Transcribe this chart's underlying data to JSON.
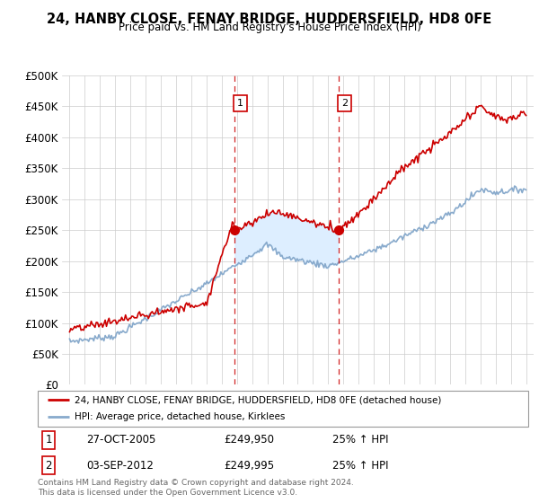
{
  "title": "24, HANBY CLOSE, FENAY BRIDGE, HUDDERSFIELD, HD8 0FE",
  "subtitle": "Price paid vs. HM Land Registry's House Price Index (HPI)",
  "ylabel_ticks": [
    "£0",
    "£50K",
    "£100K",
    "£150K",
    "£200K",
    "£250K",
    "£300K",
    "£350K",
    "£400K",
    "£450K",
    "£500K"
  ],
  "ytick_values": [
    0,
    50000,
    100000,
    150000,
    200000,
    250000,
    300000,
    350000,
    400000,
    450000,
    500000
  ],
  "xlim": [
    1994.5,
    2025.5
  ],
  "ylim": [
    0,
    500000
  ],
  "sale1_year": 2005.82,
  "sale1_price": 249950,
  "sale2_year": 2012.67,
  "sale2_price": 249995,
  "legend_line1": "24, HANBY CLOSE, FENAY BRIDGE, HUDDERSFIELD, HD8 0FE (detached house)",
  "legend_line2": "HPI: Average price, detached house, Kirklees",
  "annotation1_date": "27-OCT-2005",
  "annotation1_price": "£249,950",
  "annotation1_hpi": "25% ↑ HPI",
  "annotation2_date": "03-SEP-2012",
  "annotation2_price": "£249,995",
  "annotation2_hpi": "25% ↑ HPI",
  "footer": "Contains HM Land Registry data © Crown copyright and database right 2024.\nThis data is licensed under the Open Government Licence v3.0.",
  "red_color": "#cc0000",
  "blue_color": "#88aacc",
  "shaded_color": "#ddeeff",
  "grid_color": "#cccccc"
}
